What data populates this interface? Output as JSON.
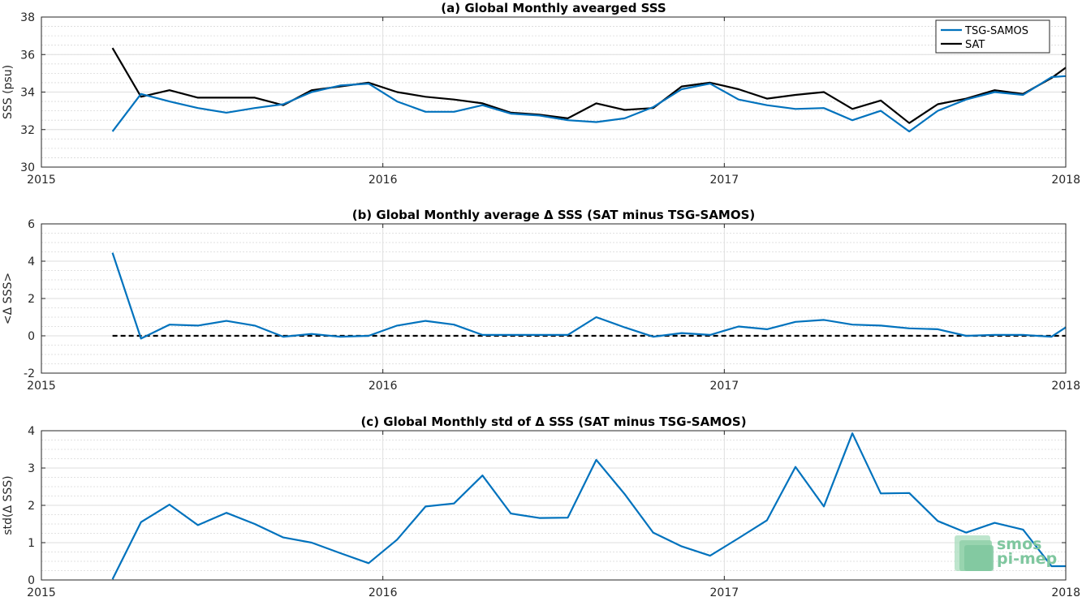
{
  "chart_data": [
    {
      "type": "line",
      "title": "(a) Global Monthly avearged SSS",
      "xlabel": "",
      "ylabel": "SSS (psu)",
      "xlim": [
        2015,
        2018
      ],
      "ylim": [
        30,
        38
      ],
      "xticks": [
        "2015",
        "2016",
        "2017",
        "2018"
      ],
      "yticks": [
        "30",
        "32",
        "34",
        "36",
        "38"
      ],
      "grid": true,
      "legend_position": "top-right",
      "x": [
        2015.2083,
        2015.2917,
        2015.375,
        2015.4583,
        2015.5417,
        2015.625,
        2015.7083,
        2015.7917,
        2015.875,
        2015.9583,
        2016.0417,
        2016.125,
        2016.2083,
        2016.2917,
        2016.375,
        2016.4583,
        2016.5417,
        2016.625,
        2016.7083,
        2016.7917,
        2016.875,
        2016.9583,
        2017.0417,
        2017.125,
        2017.2083,
        2017.2917,
        2017.375,
        2017.4583,
        2017.5417,
        2017.625,
        2017.7083,
        2017.7917,
        2017.875,
        2017.9583,
        2018.0
      ],
      "series": [
        {
          "name": "TSG-SAMOS",
          "color": "#0072bd",
          "values": [
            31.9,
            33.9,
            33.5,
            33.15,
            32.9,
            33.15,
            33.35,
            34.0,
            34.35,
            34.45,
            33.5,
            32.95,
            32.95,
            33.3,
            32.85,
            32.75,
            32.5,
            32.4,
            32.6,
            33.2,
            34.15,
            34.45,
            33.6,
            33.3,
            33.1,
            33.15,
            32.5,
            33.0,
            31.9,
            33.0,
            33.6,
            34.0,
            33.85,
            34.8,
            34.85
          ]
        },
        {
          "name": "SAT",
          "color": "#000000",
          "values": [
            36.35,
            33.75,
            34.1,
            33.7,
            33.7,
            33.7,
            33.3,
            34.1,
            34.3,
            34.5,
            34.0,
            33.75,
            33.6,
            33.4,
            32.9,
            32.8,
            32.6,
            33.4,
            33.05,
            33.15,
            34.3,
            34.5,
            34.15,
            33.65,
            33.85,
            34.0,
            33.1,
            33.55,
            32.35,
            33.35,
            33.65,
            34.1,
            33.9,
            34.75,
            35.3
          ]
        }
      ]
    },
    {
      "type": "line",
      "title": "(b) Global Monthly average Δ SSS (SAT minus TSG-SAMOS)",
      "xlabel": "",
      "ylabel": "<Δ SSS>",
      "xlim": [
        2015,
        2018
      ],
      "ylim": [
        -2,
        6
      ],
      "xticks": [
        "2015",
        "2016",
        "2017",
        "2018"
      ],
      "yticks": [
        "-2",
        "0",
        "2",
        "4",
        "6"
      ],
      "grid": true,
      "reference_line": {
        "y": 0,
        "style": "dashed",
        "color": "#000000"
      },
      "x": [
        2015.2083,
        2015.2917,
        2015.375,
        2015.4583,
        2015.5417,
        2015.625,
        2015.7083,
        2015.7917,
        2015.875,
        2015.9583,
        2016.0417,
        2016.125,
        2016.2083,
        2016.2917,
        2016.375,
        2016.4583,
        2016.5417,
        2016.625,
        2016.7083,
        2016.7917,
        2016.875,
        2016.9583,
        2017.0417,
        2017.125,
        2017.2083,
        2017.2917,
        2017.375,
        2017.4583,
        2017.5417,
        2017.625,
        2017.7083,
        2017.7917,
        2017.875,
        2017.9583,
        2018.0
      ],
      "series": [
        {
          "color": "#0072bd",
          "values": [
            4.45,
            -0.15,
            0.6,
            0.55,
            0.8,
            0.55,
            -0.05,
            0.1,
            -0.05,
            0.0,
            0.55,
            0.8,
            0.6,
            0.05,
            0.05,
            0.05,
            0.05,
            1.0,
            0.45,
            -0.05,
            0.15,
            0.05,
            0.5,
            0.35,
            0.75,
            0.85,
            0.6,
            0.55,
            0.4,
            0.35,
            0.0,
            0.05,
            0.05,
            -0.05,
            0.45
          ]
        }
      ]
    },
    {
      "type": "line",
      "title": "(c) Global Monthly std of Δ SSS (SAT minus TSG-SAMOS)",
      "xlabel": "",
      "ylabel": "std(Δ SSS)",
      "xlim": [
        2015,
        2018
      ],
      "ylim": [
        0,
        4
      ],
      "xticks": [
        "2015",
        "2016",
        "2017",
        "2018"
      ],
      "yticks": [
        "0",
        "1",
        "2",
        "3",
        "4"
      ],
      "grid": true,
      "x": [
        2015.2083,
        2015.2917,
        2015.375,
        2015.4583,
        2015.5417,
        2015.625,
        2015.7083,
        2015.7917,
        2015.875,
        2015.9583,
        2016.0417,
        2016.125,
        2016.2083,
        2016.2917,
        2016.375,
        2016.4583,
        2016.5417,
        2016.625,
        2016.7083,
        2016.7917,
        2016.875,
        2016.9583,
        2017.0417,
        2017.125,
        2017.2083,
        2017.2917,
        2017.375,
        2017.4583,
        2017.5417,
        2017.625,
        2017.7083,
        2017.7917,
        2017.875,
        2017.9583,
        2018.0
      ],
      "series": [
        {
          "color": "#0072bd",
          "values": [
            0.02,
            1.55,
            2.02,
            1.47,
            1.8,
            1.5,
            1.14,
            1.0,
            0.72,
            0.45,
            1.08,
            1.97,
            2.05,
            2.8,
            1.78,
            1.66,
            1.67,
            3.22,
            2.3,
            1.27,
            0.9,
            0.65,
            1.12,
            1.6,
            3.03,
            1.97,
            3.93,
            2.32,
            2.33,
            1.58,
            1.27,
            1.53,
            1.35,
            0.37,
            0.37
          ]
        }
      ]
    }
  ],
  "watermark": {
    "line1": "smos",
    "line2": "pi-mep",
    "color": "#7fc79f"
  }
}
